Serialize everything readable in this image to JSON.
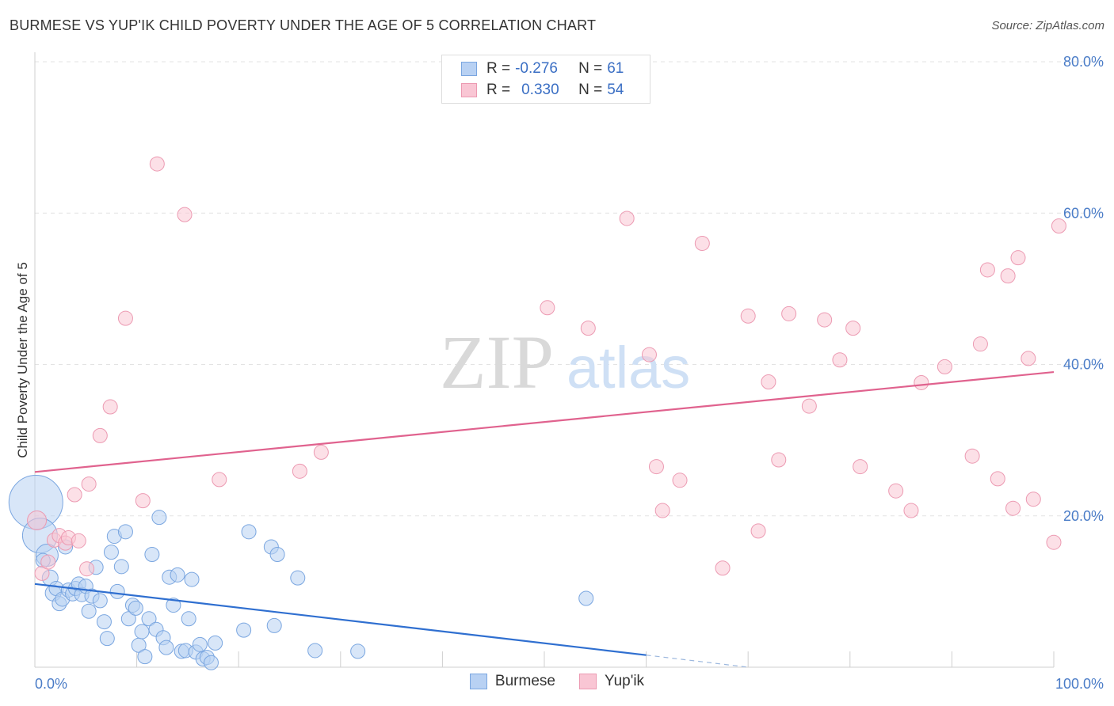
{
  "title": "BURMESE VS YUP'IK CHILD POVERTY UNDER THE AGE OF 5 CORRELATION CHART",
  "source": "Source: ZipAtlas.com",
  "watermark": {
    "zip": "ZIP",
    "atlas": "atlas"
  },
  "legend": {
    "r_label": "R =",
    "n_label": "N =",
    "rows": [
      {
        "r": "-0.276",
        "n": "61",
        "fill": "#b8d1f3",
        "stroke": "#7aa6e0"
      },
      {
        "r": "0.330",
        "n": "54",
        "fill": "#f9c6d4",
        "stroke": "#ec9ab2"
      }
    ]
  },
  "chart_data": {
    "type": "scatter",
    "title": "BURMESE VS YUP'IK CHILD POVERTY UNDER THE AGE OF 5 CORRELATION CHART",
    "xlabel": "",
    "ylabel": "Child Poverty Under the Age of 5",
    "xlim": [
      0,
      100
    ],
    "ylim": [
      0,
      80
    ],
    "x_tick_labels": [
      "0.0%",
      "100.0%"
    ],
    "y_ticks": [
      20,
      40,
      60,
      80
    ],
    "y_tick_labels": [
      "20.0%",
      "40.0%",
      "60.0%",
      "80.0%"
    ],
    "grid": true,
    "legend_position": "top-center",
    "series": [
      {
        "name": "Burmese",
        "color": "#7aa6e0",
        "fill": "#b8d1f3",
        "trend": {
          "x": [
            0,
            60
          ],
          "y": [
            11.0,
            1.6
          ],
          "dashed_to": [
            70,
            0
          ]
        },
        "points": [
          [
            0.1,
            21.8,
            34
          ],
          [
            0.5,
            17.4,
            22
          ],
          [
            1.2,
            14.8,
            14
          ],
          [
            1.5,
            11.8,
            10
          ],
          [
            1.8,
            9.8,
            10
          ],
          [
            2.1,
            10.4,
            9
          ],
          [
            2.4,
            8.4,
            9
          ],
          [
            2.7,
            9.0,
            9
          ],
          [
            3.0,
            15.9,
            9
          ],
          [
            3.3,
            10.2,
            9
          ],
          [
            3.7,
            9.7,
            9
          ],
          [
            4.0,
            10.4,
            9
          ],
          [
            4.3,
            11.0,
            9
          ],
          [
            4.6,
            9.6,
            9
          ],
          [
            5.0,
            10.7,
            9
          ],
          [
            5.3,
            7.4,
            9
          ],
          [
            5.6,
            9.4,
            9
          ],
          [
            6.0,
            13.2,
            9
          ],
          [
            6.4,
            8.8,
            9
          ],
          [
            6.8,
            6.0,
            9
          ],
          [
            7.1,
            3.8,
            9
          ],
          [
            7.5,
            15.2,
            9
          ],
          [
            7.8,
            17.3,
            9
          ],
          [
            8.1,
            10.0,
            9
          ],
          [
            8.5,
            13.3,
            9
          ],
          [
            8.9,
            17.9,
            9
          ],
          [
            9.2,
            6.4,
            9
          ],
          [
            9.6,
            8.2,
            9
          ],
          [
            9.9,
            7.8,
            9
          ],
          [
            10.2,
            2.9,
            9
          ],
          [
            10.5,
            4.7,
            9
          ],
          [
            10.8,
            1.4,
            9
          ],
          [
            11.2,
            6.4,
            9
          ],
          [
            11.5,
            14.9,
            9
          ],
          [
            11.9,
            5.0,
            9
          ],
          [
            12.2,
            19.8,
            9
          ],
          [
            12.6,
            3.9,
            9
          ],
          [
            12.9,
            2.6,
            9
          ],
          [
            13.2,
            11.9,
            9
          ],
          [
            13.6,
            8.2,
            9
          ],
          [
            14.0,
            12.2,
            9
          ],
          [
            14.4,
            2.1,
            9
          ],
          [
            14.8,
            2.2,
            9
          ],
          [
            15.1,
            6.4,
            9
          ],
          [
            15.4,
            11.6,
            9
          ],
          [
            15.8,
            2.0,
            9
          ],
          [
            16.2,
            3.0,
            9
          ],
          [
            16.5,
            1.1,
            9
          ],
          [
            16.9,
            1.3,
            9
          ],
          [
            17.3,
            0.6,
            9
          ],
          [
            17.7,
            3.2,
            9
          ],
          [
            20.5,
            4.9,
            9
          ],
          [
            21.0,
            17.9,
            9
          ],
          [
            23.2,
            15.9,
            9
          ],
          [
            23.5,
            5.5,
            9
          ],
          [
            23.8,
            14.9,
            9
          ],
          [
            25.8,
            11.8,
            9
          ],
          [
            27.5,
            2.2,
            9
          ],
          [
            31.7,
            2.1,
            9
          ],
          [
            54.1,
            9.1,
            9
          ],
          [
            0.8,
            14.1,
            9
          ]
        ]
      },
      {
        "name": "Yup'ik",
        "color": "#ec9ab2",
        "fill": "#f9c6d4",
        "trend": {
          "x": [
            0,
            100
          ],
          "y": [
            25.8,
            39.0
          ]
        },
        "points": [
          [
            0.2,
            19.4,
            12
          ],
          [
            0.7,
            12.4,
            9
          ],
          [
            1.3,
            13.9,
            9
          ],
          [
            1.9,
            16.8,
            9
          ],
          [
            2.4,
            17.4,
            9
          ],
          [
            3.0,
            16.4,
            9
          ],
          [
            3.3,
            17.1,
            9
          ],
          [
            3.9,
            22.8,
            9
          ],
          [
            4.3,
            16.7,
            9
          ],
          [
            5.1,
            13.0,
            9
          ],
          [
            5.3,
            24.2,
            9
          ],
          [
            6.4,
            30.6,
            9
          ],
          [
            7.4,
            34.4,
            9
          ],
          [
            8.9,
            46.1,
            9
          ],
          [
            10.6,
            22.0,
            9
          ],
          [
            12.0,
            66.5,
            9
          ],
          [
            14.7,
            59.8,
            9
          ],
          [
            18.1,
            24.8,
            9
          ],
          [
            26.0,
            25.9,
            9
          ],
          [
            28.1,
            28.4,
            9
          ],
          [
            50.3,
            47.5,
            9
          ],
          [
            54.3,
            44.8,
            9
          ],
          [
            58.1,
            59.3,
            9
          ],
          [
            60.3,
            41.3,
            9
          ],
          [
            61.0,
            26.5,
            9
          ],
          [
            61.6,
            20.7,
            9
          ],
          [
            63.3,
            24.7,
            9
          ],
          [
            65.5,
            56.0,
            9
          ],
          [
            67.5,
            13.1,
            9
          ],
          [
            70.0,
            46.4,
            9
          ],
          [
            71.0,
            18.0,
            9
          ],
          [
            72.0,
            37.7,
            9
          ],
          [
            73.0,
            27.4,
            9
          ],
          [
            74.0,
            46.7,
            9
          ],
          [
            76.0,
            34.5,
            9
          ],
          [
            77.5,
            45.9,
            9
          ],
          [
            79.0,
            40.6,
            9
          ],
          [
            80.3,
            44.8,
            9
          ],
          [
            81.0,
            26.5,
            9
          ],
          [
            84.5,
            23.3,
            9
          ],
          [
            86.0,
            20.7,
            9
          ],
          [
            87.0,
            37.6,
            9
          ],
          [
            89.3,
            39.7,
            9
          ],
          [
            92.0,
            27.9,
            9
          ],
          [
            92.8,
            42.7,
            9
          ],
          [
            93.5,
            52.5,
            9
          ],
          [
            94.5,
            24.9,
            9
          ],
          [
            95.5,
            51.7,
            9
          ],
          [
            96.0,
            21.0,
            9
          ],
          [
            96.5,
            54.1,
            9
          ],
          [
            97.5,
            40.8,
            9
          ],
          [
            98.0,
            22.2,
            9
          ],
          [
            100.0,
            16.5,
            9
          ],
          [
            100.5,
            58.3,
            9
          ]
        ]
      }
    ]
  },
  "bottom_legend": [
    {
      "label": "Burmese",
      "fill": "#b8d1f3",
      "stroke": "#7aa6e0"
    },
    {
      "label": "Yup'ik",
      "fill": "#f9c6d4",
      "stroke": "#ec9ab2"
    }
  ]
}
